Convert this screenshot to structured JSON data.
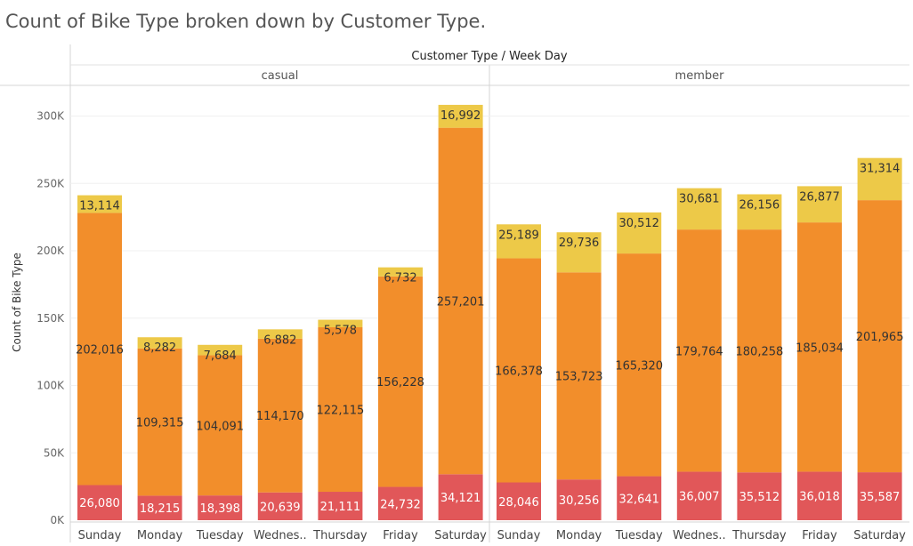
{
  "chart_data": {
    "type": "bar",
    "stacked": true,
    "title": "Count of Bike Type broken down by Customer Type.",
    "header_title": "Customer Type / Week Day",
    "ylabel": "Count of Bike Type",
    "ylim": [
      0,
      320000
    ],
    "y_ticks": [
      {
        "value": 0,
        "label": "0K"
      },
      {
        "value": 50000,
        "label": "50K"
      },
      {
        "value": 100000,
        "label": "100K"
      },
      {
        "value": 150000,
        "label": "150K"
      },
      {
        "value": 200000,
        "label": "200K"
      },
      {
        "value": 250000,
        "label": "250K"
      },
      {
        "value": 300000,
        "label": "300K"
      }
    ],
    "grid": true,
    "colors": [
      "#e15759",
      "#f28e2b",
      "#edc948"
    ],
    "panels": [
      {
        "name": "casual",
        "categories": [
          "Sunday",
          "Monday",
          "Tuesday",
          "Wednes..",
          "Thursday",
          "Friday",
          "Saturday"
        ],
        "series": [
          {
            "values": [
              26080,
              18215,
              18398,
              20639,
              21111,
              24732,
              34121
            ],
            "labels": [
              "26,080",
              "18,215",
              "18,398",
              "20,639",
              "21,111",
              "24,732",
              "34,121"
            ]
          },
          {
            "values": [
              202016,
              109315,
              104091,
              114170,
              122115,
              156228,
              257201
            ],
            "labels": [
              "202,016",
              "109,315",
              "104,091",
              "114,170",
              "122,115",
              "156,228",
              "257,201"
            ]
          },
          {
            "values": [
              13114,
              8282,
              7684,
              6882,
              5578,
              6732,
              16992
            ],
            "labels": [
              "13,114",
              "8,282",
              "7,684",
              "6,882",
              "5,578",
              "6,732",
              "16,992"
            ]
          }
        ]
      },
      {
        "name": "member",
        "categories": [
          "Sunday",
          "Monday",
          "Tuesday",
          "Wednes..",
          "Thursday",
          "Friday",
          "Saturday"
        ],
        "series": [
          {
            "values": [
              28046,
              30256,
              32641,
              36007,
              35512,
              36018,
              35587
            ],
            "labels": [
              "28,046",
              "30,256",
              "32,641",
              "36,007",
              "35,512",
              "36,018",
              "35,587"
            ]
          },
          {
            "values": [
              166378,
              153723,
              165320,
              179764,
              180258,
              185034,
              201965
            ],
            "labels": [
              "166,378",
              "153,723",
              "165,320",
              "179,764",
              "180,258",
              "185,034",
              "201,965"
            ]
          },
          {
            "values": [
              25189,
              29736,
              30512,
              30681,
              26156,
              26877,
              31314
            ],
            "labels": [
              "25,189",
              "29,736",
              "30,512",
              "30,681",
              "26,156",
              "26,877",
              "31,314"
            ]
          }
        ]
      }
    ]
  }
}
